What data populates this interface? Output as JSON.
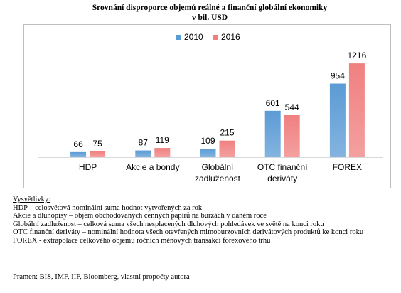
{
  "title": {
    "line1": "Srovnání disproporce objemů reálné a finanční globální ekonomiky",
    "line2": "v bil. USD"
  },
  "colors": {
    "2010": "#5b9bd5",
    "2016": "#f08080"
  },
  "chart_data": {
    "type": "bar",
    "categories": [
      [
        "HDP"
      ],
      [
        "Akcie a bondy"
      ],
      [
        "Globální",
        "zadluženost"
      ],
      [
        "OTC finanční",
        "deriváty"
      ],
      [
        "FOREX"
      ]
    ],
    "series": [
      {
        "name": "2010",
        "values": [
          66,
          87,
          109,
          601,
          954
        ]
      },
      {
        "name": "2016",
        "values": [
          75,
          119,
          215,
          544,
          1216
        ]
      }
    ],
    "legend_position": "top",
    "ylim": [
      0,
      1300
    ],
    "grid": false
  },
  "notes": {
    "heading": "Vysvětlivky:",
    "lines": [
      "HDP – celosvětová nominální suma hodnot vytvořených za rok",
      "Akcie a dluhopisy – objem obchodovaných cenných papírů na burzách v daném roce",
      "Globální zadluženost – celková suma všech nesplacených  dluhových  pohledávek ve světě   na konci roku",
      "OTC  finanční  deriváty – nominální hodnota všech otevřených mimoburzovních derivátových produktů  ke konci roku",
      "FOREX  - extrapolace celkového objemu ročních měnových transakcí forexového trhu"
    ],
    "source": "Pramen: BIS, IMF, IIF, Bloomberg, vlastní propočty autora"
  }
}
